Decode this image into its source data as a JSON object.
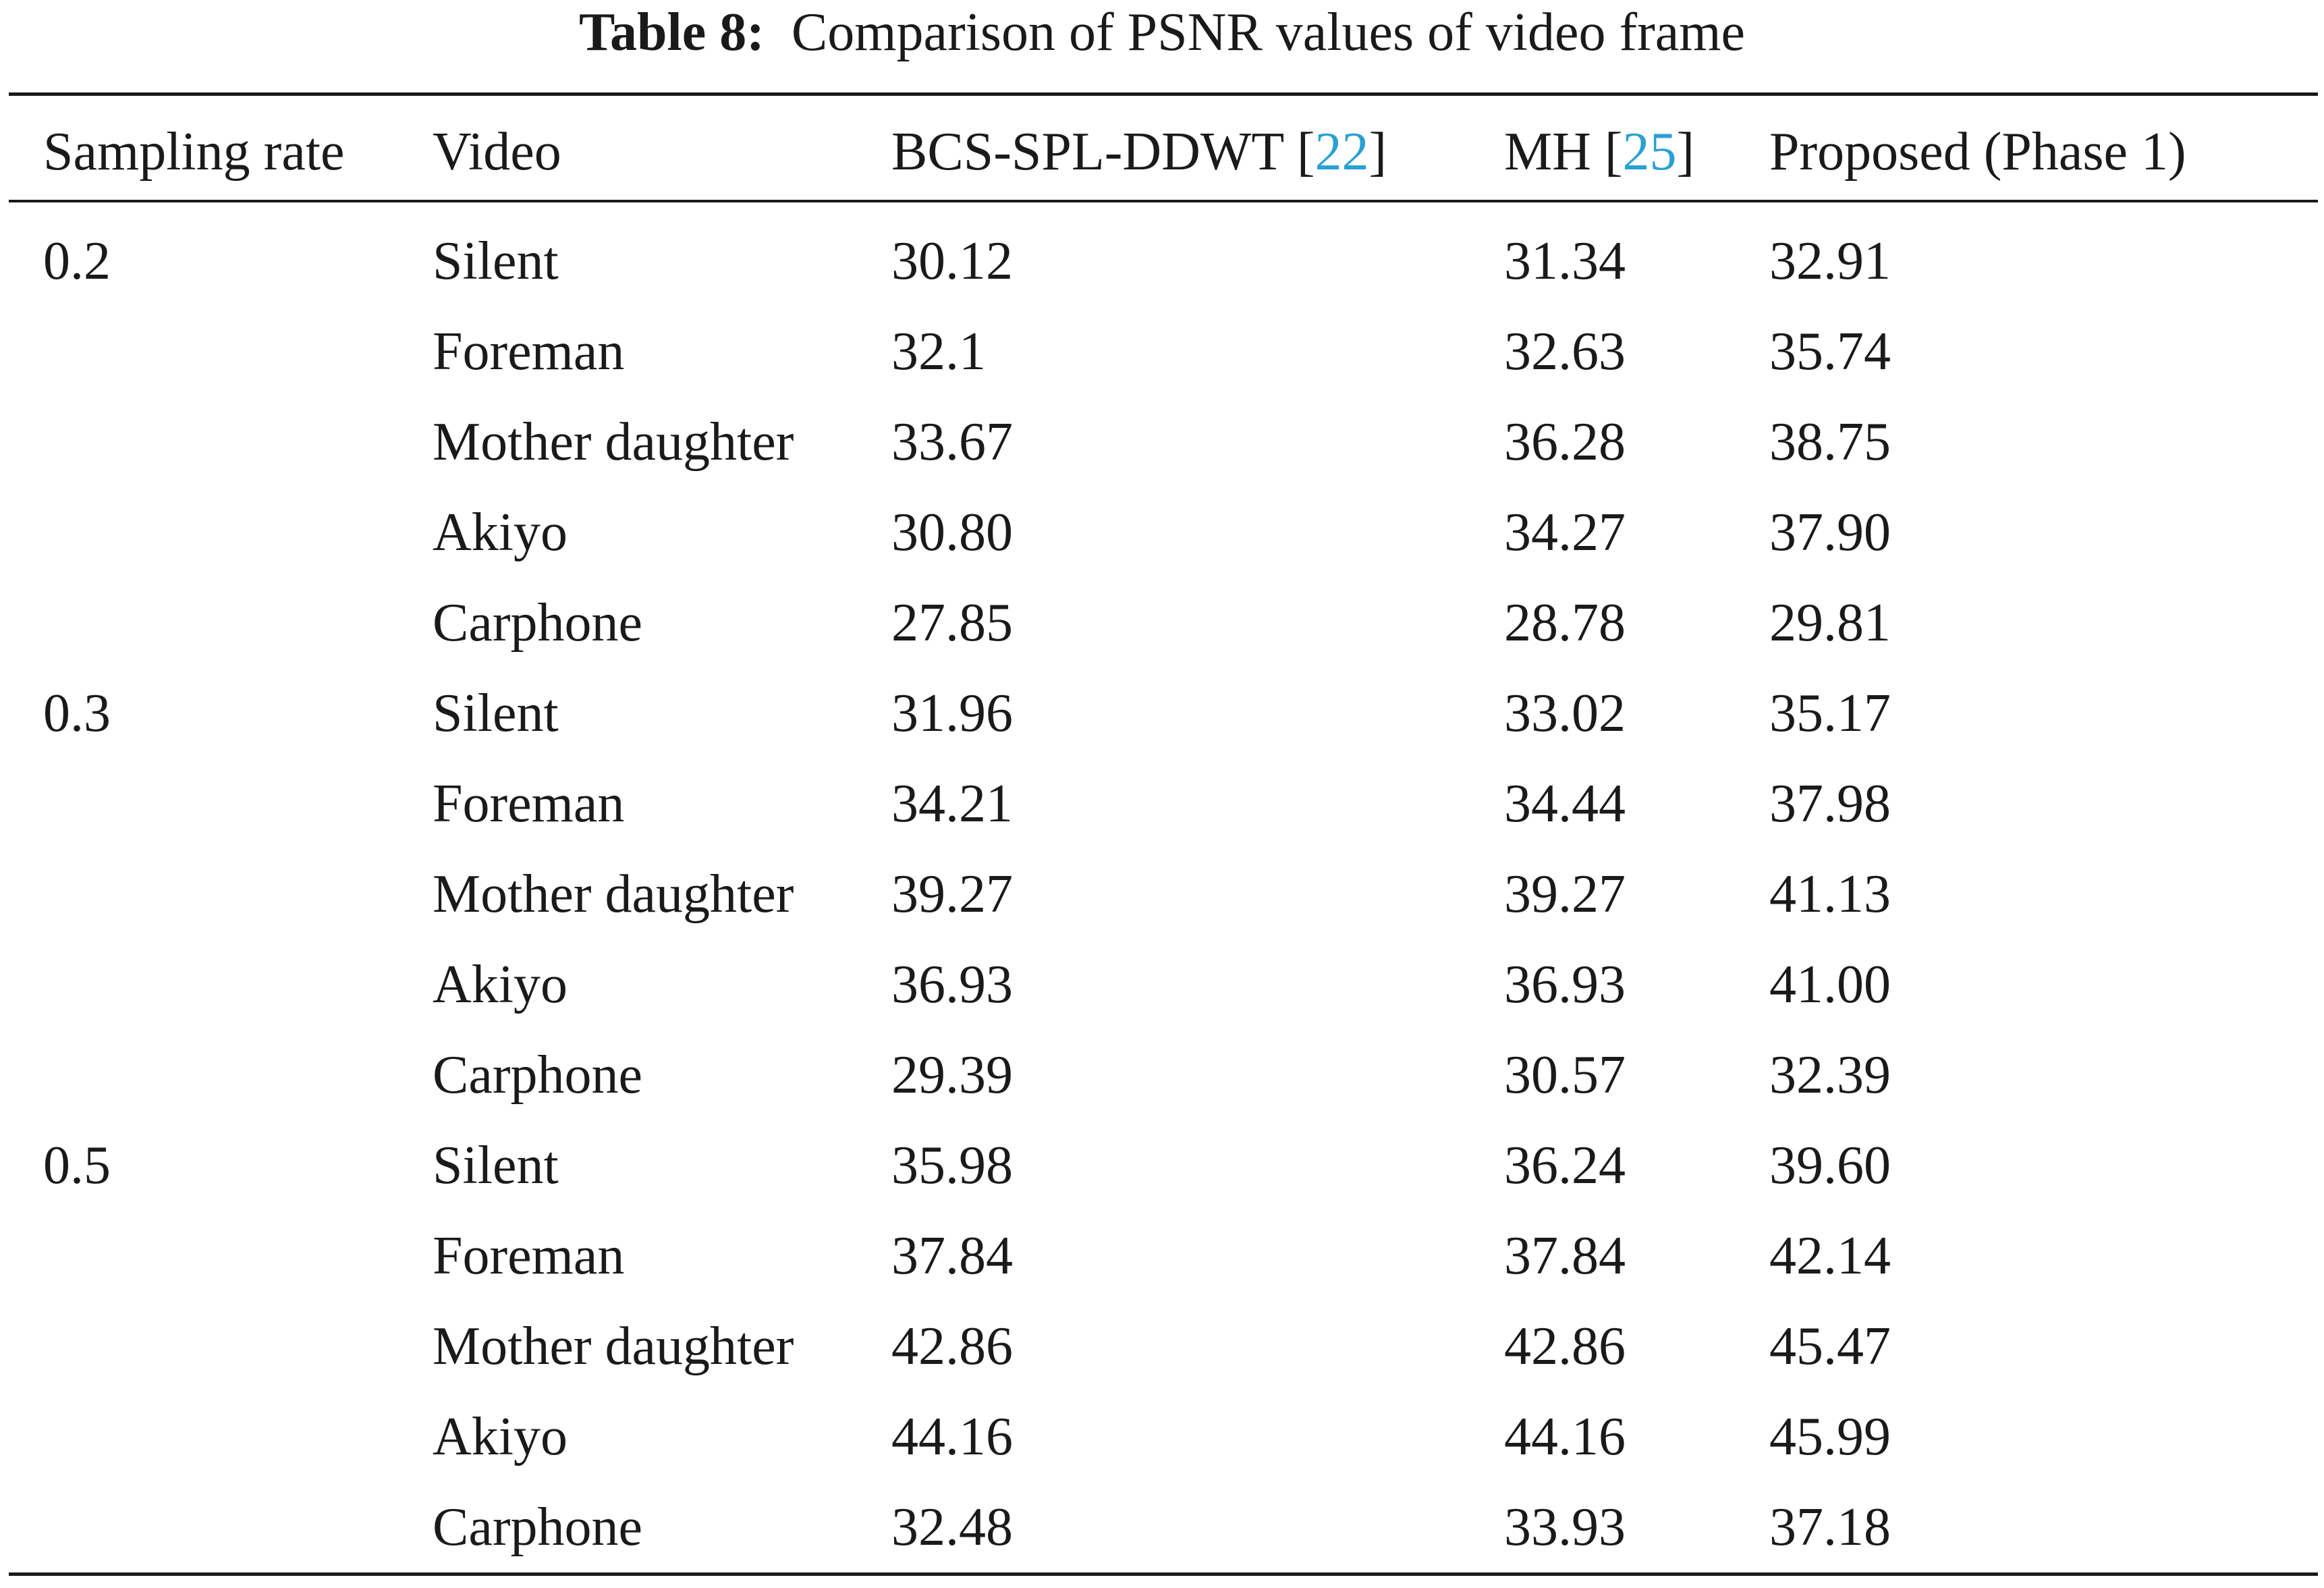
{
  "caption": {
    "label": "Table 8:",
    "title": "Comparison of PSNR values of video frame"
  },
  "header": {
    "sampling_rate": "Sampling rate",
    "video": "Video",
    "bcs": {
      "name": "BCS-SPL-DDWT",
      "open": " [",
      "ref": "22",
      "close": "]"
    },
    "mh": {
      "name": "MH",
      "open": " [",
      "ref": "25",
      "close": "]"
    },
    "proposed": "Proposed (Phase 1)"
  },
  "rows": [
    {
      "rate": "0.2",
      "video": "Silent",
      "bcs": "30.12",
      "mh": "31.34",
      "proposed": "32.91"
    },
    {
      "rate": "",
      "video": "Foreman",
      "bcs": "32.1",
      "mh": "32.63",
      "proposed": "35.74"
    },
    {
      "rate": "",
      "video": "Mother daughter",
      "bcs": "33.67",
      "mh": "36.28",
      "proposed": "38.75"
    },
    {
      "rate": "",
      "video": "Akiyo",
      "bcs": "30.80",
      "mh": "34.27",
      "proposed": "37.90"
    },
    {
      "rate": "",
      "video": "Carphone",
      "bcs": "27.85",
      "mh": "28.78",
      "proposed": "29.81"
    },
    {
      "rate": "0.3",
      "video": "Silent",
      "bcs": "31.96",
      "mh": "33.02",
      "proposed": "35.17"
    },
    {
      "rate": "",
      "video": "Foreman",
      "bcs": "34.21",
      "mh": "34.44",
      "proposed": "37.98"
    },
    {
      "rate": "",
      "video": "Mother daughter",
      "bcs": "39.27",
      "mh": "39.27",
      "proposed": "41.13"
    },
    {
      "rate": "",
      "video": "Akiyo",
      "bcs": "36.93",
      "mh": "36.93",
      "proposed": "41.00"
    },
    {
      "rate": "",
      "video": "Carphone",
      "bcs": "29.39",
      "mh": "30.57",
      "proposed": "32.39"
    },
    {
      "rate": "0.5",
      "video": "Silent",
      "bcs": "35.98",
      "mh": "36.24",
      "proposed": "39.60"
    },
    {
      "rate": "",
      "video": "Foreman",
      "bcs": "37.84",
      "mh": "37.84",
      "proposed": "42.14"
    },
    {
      "rate": "",
      "video": "Mother daughter",
      "bcs": "42.86",
      "mh": "42.86",
      "proposed": "45.47"
    },
    {
      "rate": "",
      "video": "Akiyo",
      "bcs": "44.16",
      "mh": "44.16",
      "proposed": "45.99"
    },
    {
      "rate": "",
      "video": "Carphone",
      "bcs": "32.48",
      "mh": "33.93",
      "proposed": "37.18"
    }
  ]
}
